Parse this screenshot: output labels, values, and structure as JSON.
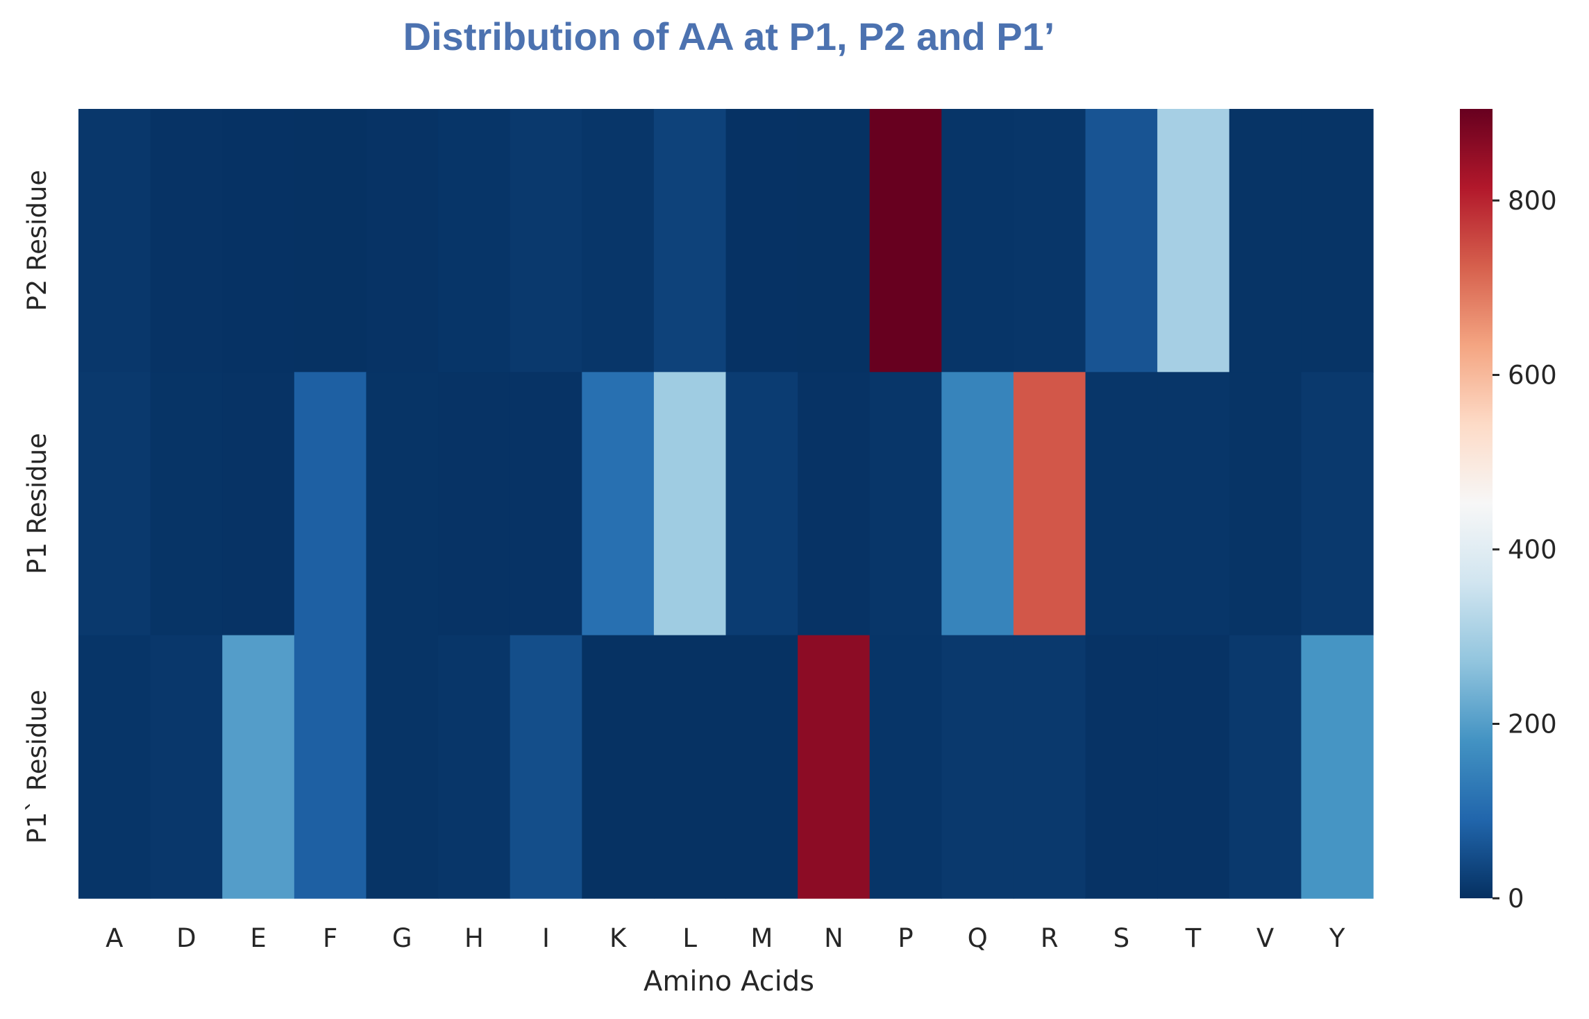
{
  "chart_data": {
    "type": "heatmap",
    "title": "Distribution of AA at P1, P2 and P1’",
    "title_color": "#4c72b0",
    "xlabel": "Amino Acids",
    "ylabel": "",
    "x_categories": [
      "A",
      "D",
      "E",
      "F",
      "G",
      "H",
      "I",
      "K",
      "L",
      "M",
      "N",
      "P",
      "Q",
      "R",
      "S",
      "T",
      "V",
      "Y"
    ],
    "y_categories": [
      "P2 Residue",
      "P1 Residue",
      "P1` Residue"
    ],
    "values": [
      [
        12,
        5,
        4,
        3,
        5,
        8,
        15,
        10,
        30,
        4,
        3,
        905,
        8,
        10,
        60,
        300,
        6,
        6
      ],
      [
        15,
        6,
        5,
        80,
        6,
        5,
        5,
        110,
        290,
        20,
        5,
        10,
        150,
        735,
        10,
        10,
        6,
        15
      ],
      [
        8,
        12,
        200,
        80,
        6,
        10,
        50,
        3,
        3,
        3,
        860,
        8,
        15,
        15,
        5,
        5,
        15,
        185
      ]
    ],
    "colormap": "RdBu_r",
    "colorbar": {
      "vmin": 0,
      "vmax": 905,
      "ticks": [
        0,
        200,
        400,
        600,
        800
      ],
      "tick_labels": [
        "0",
        "200",
        "400",
        "600",
        "800"
      ]
    },
    "grid": false
  }
}
